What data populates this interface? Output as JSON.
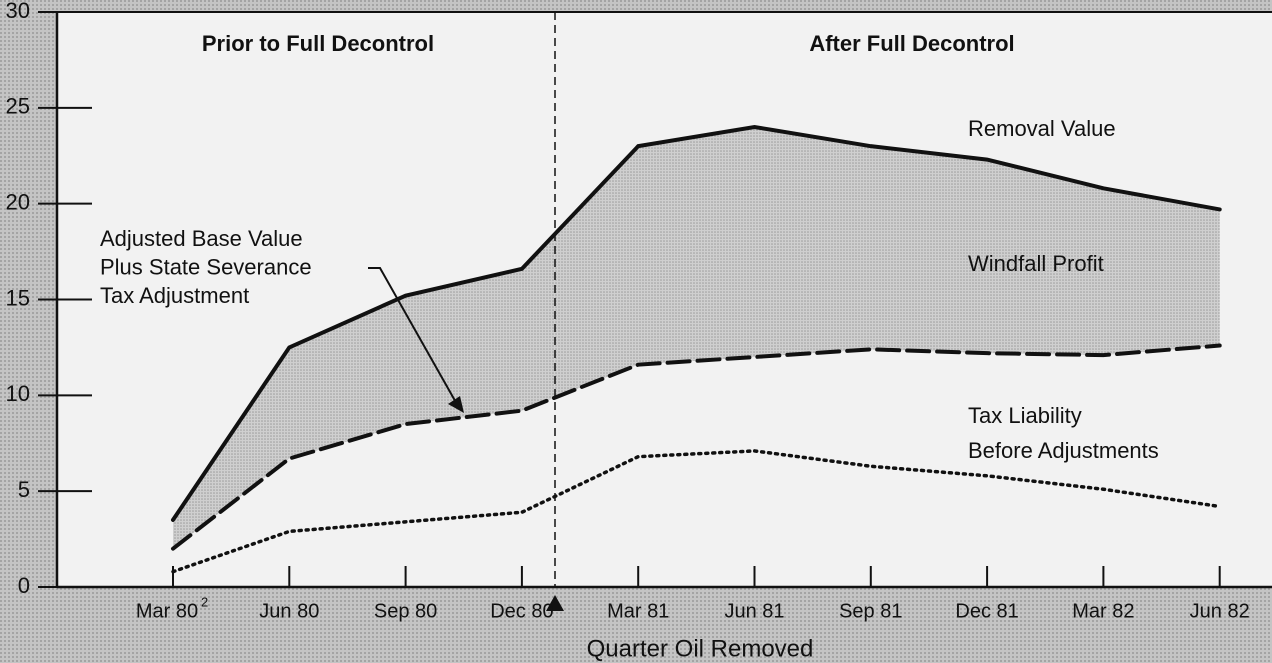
{
  "chart_data": {
    "type": "line",
    "region_labels": [
      "Prior to Full Decontrol",
      "After Full Decontrol"
    ],
    "x_label": "Quarter Oil Removed",
    "categories": [
      "Mar 80",
      "Jun 80",
      "Sep 80",
      "Dec 80",
      "Mar 81",
      "Jun 81",
      "Sep 81",
      "Dec 81",
      "Mar 82",
      "Jun 82"
    ],
    "footnote_marker": "2",
    "area_label": "Windfall Profit",
    "series": [
      {
        "name": [
          "Removal Value"
        ],
        "style": "solid",
        "color": "#111111",
        "values": [
          3.5,
          12.5,
          15.2,
          16.6,
          23.0,
          24.0,
          23.0,
          22.3,
          20.8,
          19.7
        ]
      },
      {
        "name": [
          "Adjusted Base Value",
          "Plus State Severance",
          "Tax Adjustment"
        ],
        "style": "dashed",
        "color": "#111111",
        "values": [
          2.0,
          6.7,
          8.5,
          9.2,
          11.6,
          12.0,
          12.4,
          12.2,
          12.1,
          12.6
        ]
      },
      {
        "name": [
          "Tax Liability",
          "Before Adjustments"
        ],
        "style": "dotted",
        "color": "#111111",
        "values": [
          0.8,
          2.9,
          3.4,
          3.9,
          6.8,
          7.1,
          6.3,
          5.8,
          5.1,
          4.2
        ]
      }
    ],
    "ylim": [
      0,
      30
    ],
    "yticks": [
      0,
      5,
      10,
      15,
      20,
      25,
      30
    ]
  }
}
